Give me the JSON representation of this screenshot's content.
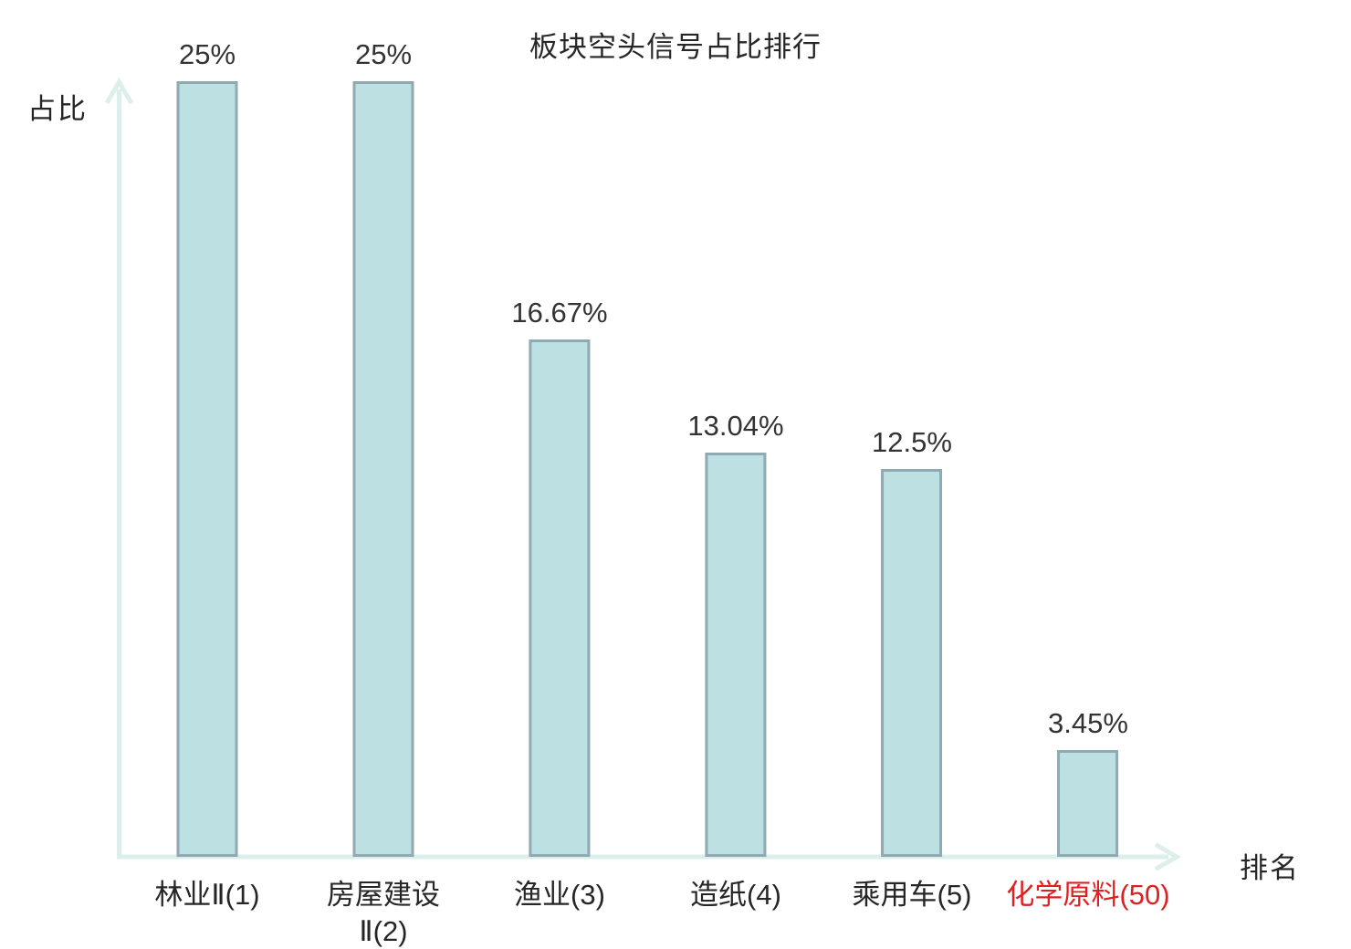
{
  "chart": {
    "title": "板块空头信号占比排行",
    "y_axis_label": "占比",
    "x_axis_label": "排名",
    "colors": {
      "bar_fill": "#bde0e2",
      "bar_border": "#90a9b2",
      "axis_color": "#dcefeb",
      "text_color": "#262626",
      "value_color": "#333333",
      "highlight_color": "#e02020",
      "background": "#ffffff"
    }
  },
  "chart_data": {
    "type": "bar",
    "title": "板块空头信号占比排行",
    "xlabel": "排名",
    "ylabel": "占比",
    "ylim": [
      0,
      25
    ],
    "grid": false,
    "legend": false,
    "categories": [
      "林业Ⅱ(1)",
      "房屋建设Ⅱ(2)",
      "渔业(3)",
      "造纸(4)",
      "乘用车(5)",
      "化学原料(50)"
    ],
    "category_display": [
      "林业Ⅱ(1)",
      "房屋建设\nⅡ(2)",
      "渔业(3)",
      "造纸(4)",
      "乘用车(5)",
      "化学原料(50)"
    ],
    "values": [
      25,
      25,
      16.67,
      13.04,
      12.5,
      3.45
    ],
    "value_labels": [
      "25%",
      "25%",
      "16.67%",
      "13.04%",
      "12.5%",
      "3.45%"
    ],
    "highlight_index": 5,
    "highlight_note": "last category rendered in red"
  }
}
